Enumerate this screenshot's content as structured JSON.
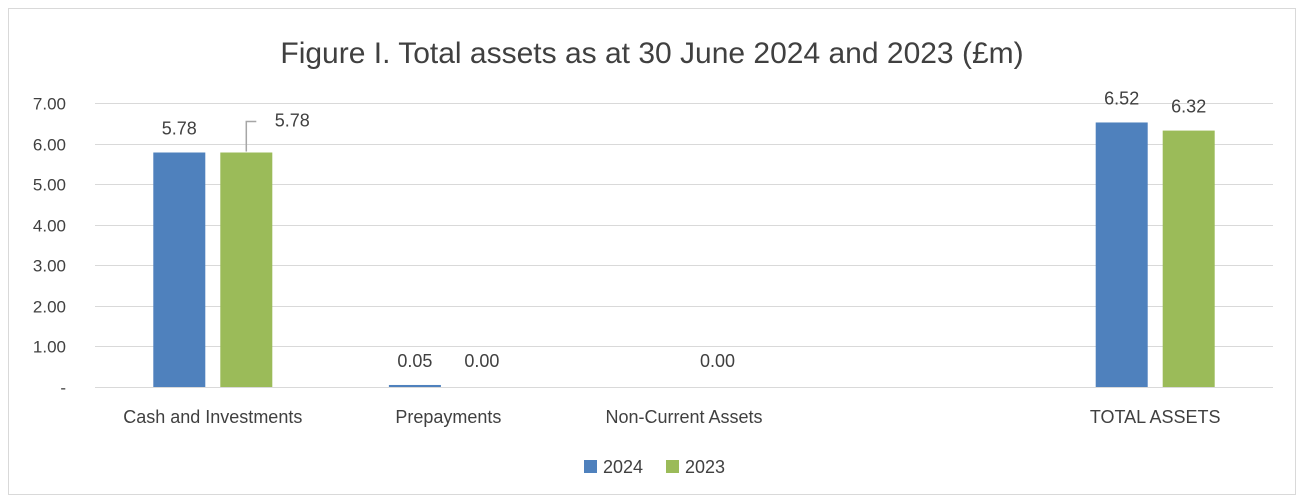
{
  "chart_data": {
    "type": "bar",
    "title": "Figure I. Total assets as at 30 June 2024 and 2023 (£m)",
    "xlabel": "",
    "ylabel": "",
    "categories": [
      "Cash and Investments",
      "Prepayments",
      "Non-Current Assets",
      "",
      "TOTAL ASSETS"
    ],
    "series": [
      {
        "name": "2024",
        "color": "#4F81BD",
        "values": [
          5.78,
          0.05,
          0.0,
          null,
          6.52
        ],
        "labels": [
          "5.78",
          "0.05",
          "",
          "",
          "6.52"
        ]
      },
      {
        "name": "2023",
        "color": "#9BBB59",
        "values": [
          5.78,
          0.0,
          0.0,
          null,
          6.32
        ],
        "labels": [
          "5.78",
          "0.00",
          "0.00",
          "",
          "6.32"
        ]
      }
    ],
    "ylim": [
      0,
      7
    ],
    "yticks": [
      0,
      1,
      2,
      3,
      4,
      5,
      6,
      7
    ],
    "ytick_labels": [
      "-",
      "1.00",
      "2.00",
      "3.00",
      "4.00",
      "5.00",
      "6.00",
      "7.00"
    ],
    "grid": true,
    "legend_position": "bottom",
    "colors": {
      "border": "#D9D9D9",
      "grid": "#D9D9D9",
      "text": "#404040",
      "leader": "#A6A6A6"
    }
  }
}
